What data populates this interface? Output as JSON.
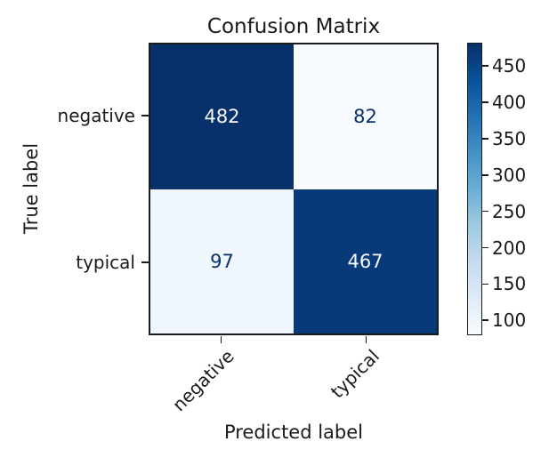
{
  "chart_data": {
    "type": "heatmap",
    "title": "Confusion Matrix",
    "xlabel": "Predicted label",
    "ylabel": "True label",
    "classes": [
      "negative",
      "typical"
    ],
    "matrix": [
      [
        482,
        82
      ],
      [
        97,
        467
      ]
    ],
    "vmin": 82,
    "vmax": 482,
    "colormap": "Blues",
    "colormap_stops": [
      "#f7fbff",
      "#deebf7",
      "#c6dbef",
      "#9ecae1",
      "#6baed6",
      "#4292c6",
      "#2171b5",
      "#08519c",
      "#08306b"
    ],
    "cell_colors": [
      [
        "#08306b",
        "#f7fbff"
      ],
      [
        "#eff6fd",
        "#083a7a"
      ]
    ],
    "cell_text_colors": [
      [
        "#f7fbff",
        "#08306b"
      ],
      [
        "#08306b",
        "#f7fbff"
      ]
    ],
    "colorbar_ticks": [
      450,
      400,
      350,
      300,
      250,
      200,
      150,
      100
    ],
    "legend_position": "right",
    "grid": false
  },
  "colors": {
    "background": "#ffffff",
    "spine": "#1a1a1a",
    "text": "#1a1a1a"
  }
}
